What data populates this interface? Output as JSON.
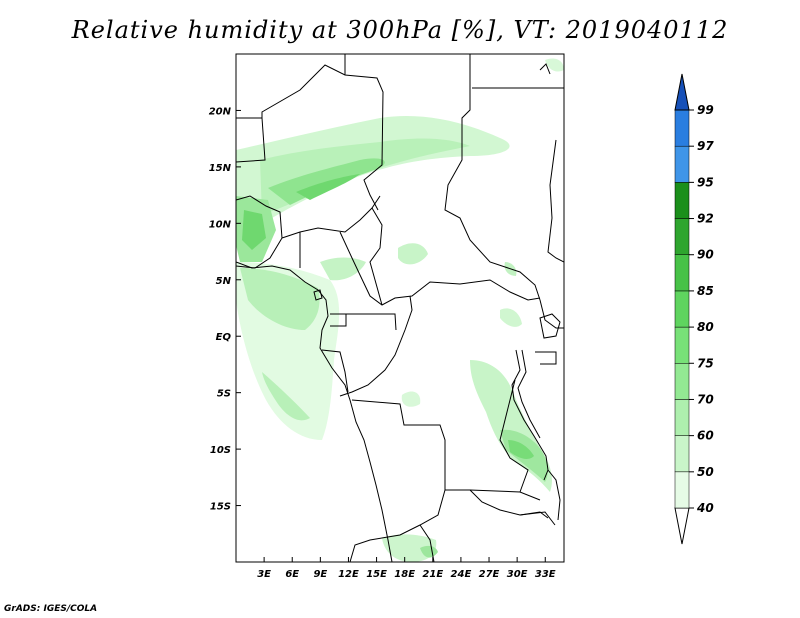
{
  "title": "Relative humidity at 300hPa [%], VT: 2019040112",
  "credit": "GrADS: IGES/COLA",
  "map": {
    "lon_range": [
      0,
      35
    ],
    "lat_range": [
      -20,
      25
    ],
    "lat_ticks": [
      {
        "value": 20,
        "label": "20N"
      },
      {
        "value": 15,
        "label": "15N"
      },
      {
        "value": 10,
        "label": "10N"
      },
      {
        "value": 5,
        "label": "5N"
      },
      {
        "value": 0,
        "label": "EQ"
      },
      {
        "value": -5,
        "label": "5S"
      },
      {
        "value": -10,
        "label": "10S"
      },
      {
        "value": -15,
        "label": "15S"
      }
    ],
    "lon_ticks": [
      {
        "value": 3,
        "label": "3E"
      },
      {
        "value": 6,
        "label": "6E"
      },
      {
        "value": 9,
        "label": "9E"
      },
      {
        "value": 12,
        "label": "12E"
      },
      {
        "value": 15,
        "label": "15E"
      },
      {
        "value": 18,
        "label": "18E"
      },
      {
        "value": 21,
        "label": "21E"
      },
      {
        "value": 24,
        "label": "24E"
      },
      {
        "value": 27,
        "label": "27E"
      },
      {
        "value": 30,
        "label": "30E"
      },
      {
        "value": 33,
        "label": "33E"
      }
    ]
  },
  "legend": {
    "levels": [
      {
        "label": "40",
        "color": "#e6fbe6"
      },
      {
        "label": "50",
        "color": "#c9f5c9"
      },
      {
        "label": "60",
        "color": "#aeefae"
      },
      {
        "label": "70",
        "color": "#93e993"
      },
      {
        "label": "75",
        "color": "#78e178"
      },
      {
        "label": "80",
        "color": "#5fd45f"
      },
      {
        "label": "85",
        "color": "#47c247"
      },
      {
        "label": "90",
        "color": "#2ea52e"
      },
      {
        "label": "92",
        "color": "#1b8f1b"
      },
      {
        "label": "95",
        "color": "#3f95e8"
      },
      {
        "label": "97",
        "color": "#2a7ee0"
      },
      {
        "label": "99",
        "color": "#1a5fc9"
      }
    ],
    "low_end_color": "#ffffff",
    "high_end_color": "#1650b8"
  }
}
